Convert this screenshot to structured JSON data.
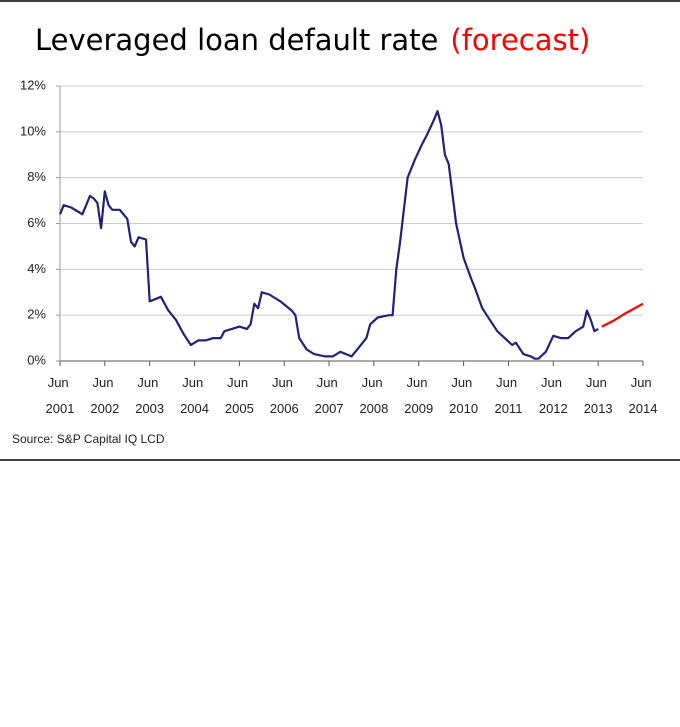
{
  "chart_data": {
    "type": "line",
    "title": "Leveraged loan default rate",
    "title_note": "(forecast)",
    "source": "Source: S&P Capital IQ LCD",
    "x": [
      "2001-06",
      "2001-07",
      "2001-09",
      "2001-11",
      "2001-12",
      "2002-02",
      "2002-03",
      "2002-04",
      "2002-05",
      "2002-06",
      "2002-07",
      "2002-08",
      "2002-10",
      "2002-12",
      "2003-01",
      "2003-02",
      "2003-03",
      "2003-05",
      "2003-06",
      "2003-09",
      "2003-11",
      "2004-01",
      "2004-03",
      "2004-05",
      "2004-07",
      "2004-09",
      "2004-11",
      "2005-01",
      "2005-02",
      "2005-04",
      "2005-06",
      "2005-08",
      "2005-09",
      "2005-10",
      "2005-11",
      "2005-12",
      "2006-02",
      "2006-05",
      "2006-08",
      "2006-09",
      "2006-10",
      "2006-12",
      "2007-02",
      "2007-05",
      "2007-07",
      "2007-09",
      "2007-12",
      "2008-02",
      "2008-04",
      "2008-05",
      "2008-07",
      "2008-10",
      "2008-11",
      "2008-12",
      "2009-01",
      "2009-03",
      "2009-05",
      "2009-07",
      "2009-08",
      "2009-10",
      "2009-11",
      "2009-12",
      "2010-01",
      "2010-02",
      "2010-04",
      "2010-06",
      "2010-08",
      "2010-09",
      "2010-11",
      "2011-01",
      "2011-03",
      "2011-05",
      "2011-07",
      "2011-08",
      "2011-10",
      "2011-12",
      "2012-01",
      "2012-02",
      "2012-04",
      "2012-06",
      "2012-08",
      "2012-10",
      "2012-12",
      "2013-01",
      "2013-02",
      "2013-03",
      "2013-04",
      "2013-05",
      "2013-06",
      "2013-07",
      "2013-10",
      "2014-01",
      "2014-06"
    ],
    "series": [
      {
        "color": "#1f237a",
        "values": [
          6.4,
          6.8,
          6.7,
          6.5,
          6.4,
          7.2,
          7.1,
          6.9,
          5.8,
          7.4,
          6.8,
          6.6,
          6.6,
          6.2,
          5.2,
          5.0,
          5.4,
          5.3,
          2.6,
          2.8,
          2.2,
          1.8,
          1.2,
          0.7,
          0.9,
          0.9,
          1.0,
          1.0,
          1.3,
          1.4,
          1.5,
          1.4,
          1.6,
          2.5,
          2.3,
          3.0,
          2.9,
          2.6,
          2.2,
          2.0,
          1.0,
          0.5,
          0.3,
          0.2,
          0.2,
          0.4,
          0.2,
          0.6,
          1.0,
          1.6,
          1.9,
          2.0,
          2.0,
          4.0,
          5.2,
          8.0,
          8.8,
          9.5,
          9.8,
          10.5,
          10.9,
          10.3,
          9.0,
          8.6,
          6.0,
          4.5,
          3.6,
          3.2,
          2.3,
          1.8,
          1.3,
          1.0,
          0.7,
          0.8,
          0.3,
          0.2,
          0.1,
          0.1,
          0.4,
          1.1,
          1.0,
          1.0,
          1.3,
          1.4,
          1.5,
          2.2,
          1.8,
          1.3,
          1.4,
          null,
          null,
          null,
          null
        ]
      },
      {
        "color": "#ff0000",
        "values": [
          null,
          null,
          null,
          null,
          null,
          null,
          null,
          null,
          null,
          null,
          null,
          null,
          null,
          null,
          null,
          null,
          null,
          null,
          null,
          null,
          null,
          null,
          null,
          null,
          null,
          null,
          null,
          null,
          null,
          null,
          null,
          null,
          null,
          null,
          null,
          null,
          null,
          null,
          null,
          null,
          null,
          null,
          null,
          null,
          null,
          null,
          null,
          null,
          null,
          null,
          null,
          null,
          null,
          null,
          null,
          null,
          null,
          null,
          null,
          null,
          null,
          null,
          null,
          null,
          null,
          null,
          null,
          null,
          null,
          null,
          null,
          null,
          null,
          null,
          null,
          null,
          null,
          null,
          null,
          null,
          null,
          null,
          null,
          null,
          null,
          null,
          null,
          null,
          null,
          1.5,
          1.75,
          2.05,
          2.5
        ]
      }
    ],
    "xlim": [
      "2001-06",
      "2014-06"
    ],
    "xticks": [
      {
        "value": "2001-06",
        "label": "Jun 2001"
      },
      {
        "value": "2002-06",
        "label": "Jun 2002"
      },
      {
        "value": "2003-06",
        "label": "Jun 2003"
      },
      {
        "value": "2004-06",
        "label": "Jun 2004"
      },
      {
        "value": "2005-06",
        "label": "Jun 2005"
      },
      {
        "value": "2006-06",
        "label": "Jun 2006"
      },
      {
        "value": "2007-06",
        "label": "Jun 2007"
      },
      {
        "value": "2008-06",
        "label": "Jun 2008"
      },
      {
        "value": "2009-06",
        "label": "Jun 2009"
      },
      {
        "value": "2010-06",
        "label": "Jun 2010"
      },
      {
        "value": "2011-06",
        "label": "Jun 2011"
      },
      {
        "value": "2012-06",
        "label": "Jun 2012"
      },
      {
        "value": "2013-06",
        "label": "Jun 2013"
      },
      {
        "value": "2014-06",
        "label": "Jun 2014"
      }
    ],
    "ylim": [
      0,
      12
    ],
    "yticks": [
      {
        "value": 0,
        "label": "0%"
      },
      {
        "value": 2,
        "label": "2%"
      },
      {
        "value": 4,
        "label": "4%"
      },
      {
        "value": 6,
        "label": "6%"
      },
      {
        "value": 8,
        "label": "8%"
      },
      {
        "value": 10,
        "label": "10%"
      },
      {
        "value": 12,
        "label": "12%"
      }
    ],
    "grid": true
  }
}
